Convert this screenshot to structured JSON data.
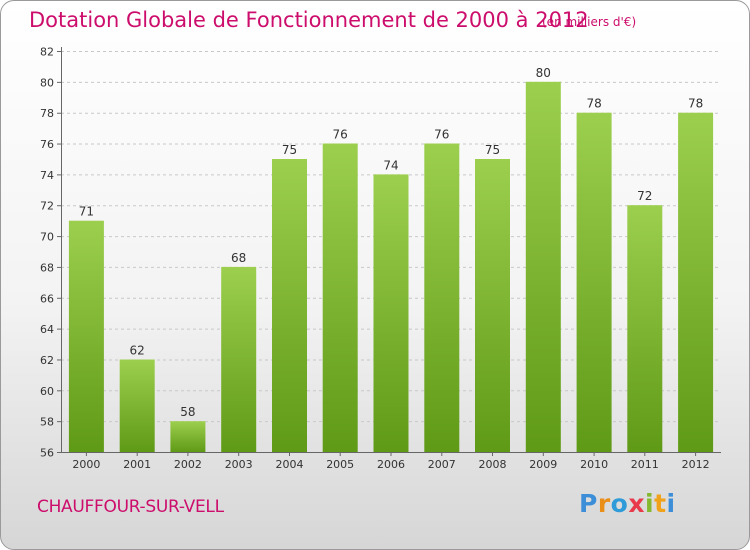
{
  "header": {
    "title": "Dotation Globale de Fonctionnement de 2000 à 2012",
    "unit": "(en milliers d'€)"
  },
  "footer": {
    "commune": "CHAUFFOUR-SUR-VELL",
    "logo_letters": [
      "P",
      "r",
      "o",
      "x",
      "i",
      "t",
      "i"
    ]
  },
  "colors": {
    "accent": "#cc0d6c",
    "bar_light": "#9ccf4e",
    "bar_dark": "#5f9a16",
    "grid": "#c8c8c8"
  },
  "chart_data": {
    "type": "bar",
    "title": "Dotation Globale de Fonctionnement de 2000 à 2012",
    "xlabel": "",
    "ylabel": "",
    "categories": [
      "2000",
      "2001",
      "2002",
      "2003",
      "2004",
      "2005",
      "2006",
      "2007",
      "2008",
      "2009",
      "2010",
      "2011",
      "2012"
    ],
    "values": [
      71,
      62,
      58,
      68,
      75,
      76,
      74,
      76,
      75,
      80,
      78,
      72,
      78
    ],
    "ylim": [
      56,
      82
    ],
    "yticks": [
      56,
      58,
      60,
      62,
      64,
      66,
      68,
      70,
      72,
      74,
      76,
      78,
      80,
      82
    ],
    "grid": "horizontal dashed",
    "data_labels": true
  }
}
